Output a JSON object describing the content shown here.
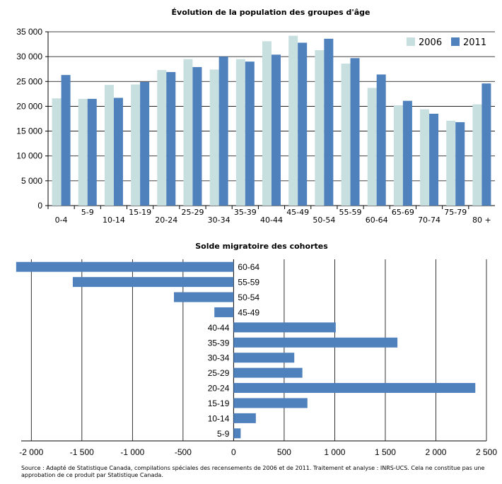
{
  "chart_data": [
    {
      "type": "bar",
      "title": "Évolution de la population des groupes d'âge",
      "categories": [
        "0-4",
        "5-9",
        "10-14",
        "15-19",
        "20-24",
        "25-29",
        "30-34",
        "35-39",
        "40-44",
        "45-49",
        "50-54",
        "55-59",
        "60-64",
        "65-69",
        "70-74",
        "75-79",
        "80 +"
      ],
      "series": [
        {
          "name": "2006",
          "color": "#c8dfe0",
          "values": [
            21600,
            21500,
            24300,
            24400,
            27300,
            29500,
            27400,
            29500,
            33100,
            34200,
            31300,
            28600,
            23700,
            20200,
            19400,
            17100,
            20400
          ]
        },
        {
          "name": "2011",
          "color": "#4f81bd",
          "values": [
            26300,
            21500,
            21700,
            24900,
            26900,
            27900,
            30000,
            29000,
            30400,
            32800,
            33600,
            29700,
            26400,
            21100,
            18500,
            16800,
            24600
          ]
        }
      ],
      "yticks": [
        "0",
        "5 000",
        "10 000",
        "15 000",
        "20 000",
        "25 000",
        "30 000",
        "35 000"
      ],
      "ylim": [
        0,
        35000
      ],
      "grid": true,
      "legend": "top-right"
    },
    {
      "type": "bar",
      "orientation": "horizontal",
      "title": "Solde migratoire des cohortes",
      "categories": [
        "60-64",
        "55-59",
        "50-54",
        "45-49",
        "40-44",
        "35-39",
        "30-34",
        "25-29",
        "20-24",
        "15-19",
        "10-14",
        "5-9"
      ],
      "values": [
        -2150,
        -1590,
        -590,
        -190,
        1010,
        1620,
        600,
        680,
        2390,
        730,
        220,
        70
      ],
      "color": "#4f81bd",
      "xticks": [
        "-2 000",
        "-1 500",
        "-1 000",
        "-500",
        "0",
        "500",
        "1 000",
        "1 500",
        "2 000",
        "2 500"
      ],
      "xlim": [
        -2100,
        2500
      ],
      "grid": true
    }
  ],
  "source": "Source : Adapté de Statistique Canada, compilations spéciales des recensements de 2006 et de 2011. Traitement et analyse : INRS-UCS. Cela ne constitue pas une approbation de ce produit par Statistique Canada."
}
